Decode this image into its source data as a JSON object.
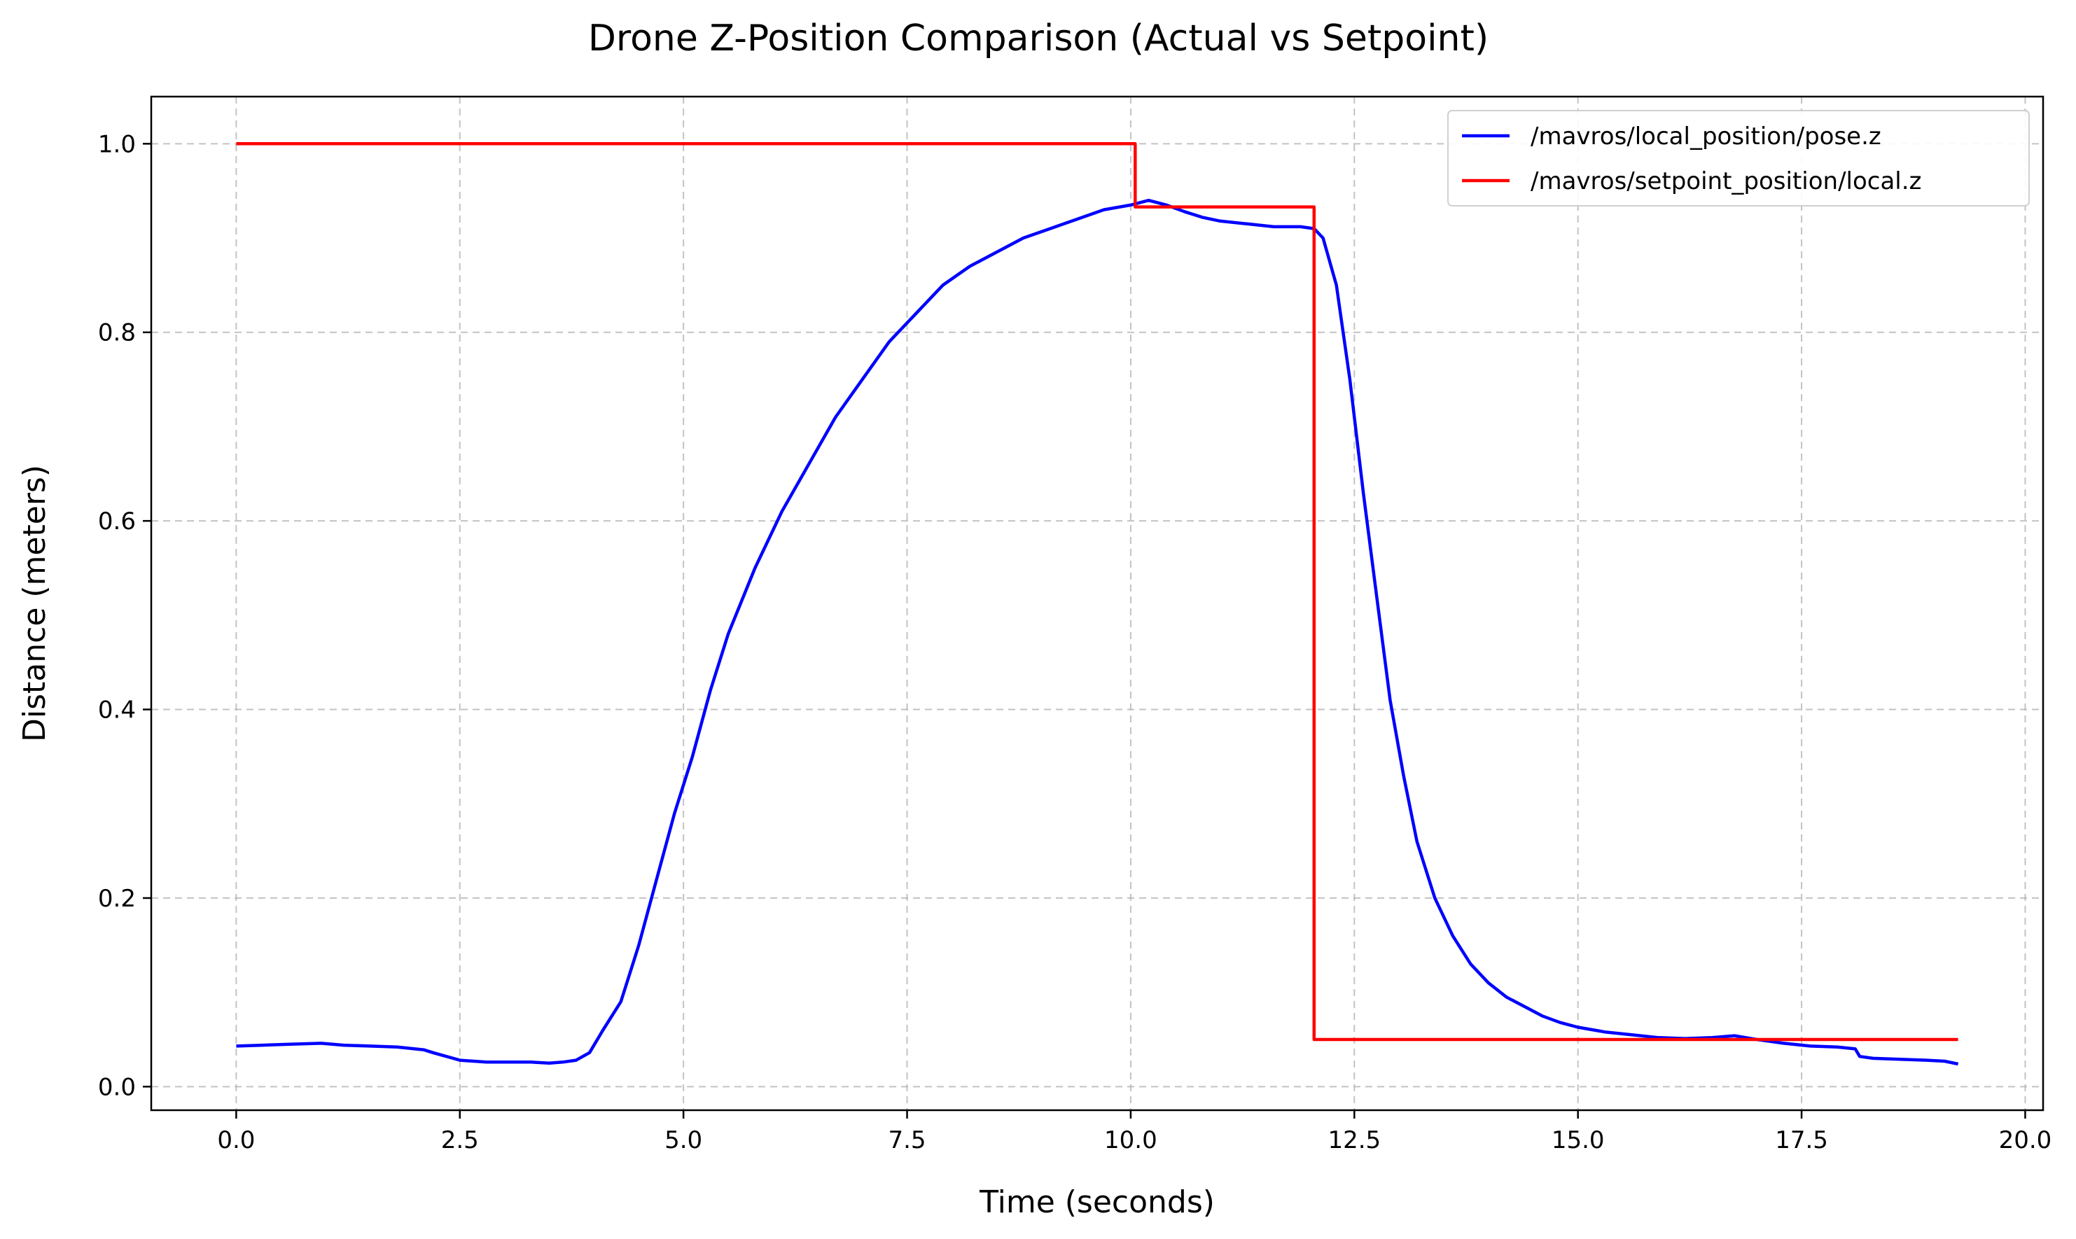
{
  "chart_data": {
    "type": "line",
    "title": "Drone Z-Position Comparison (Actual vs Setpoint)",
    "xlabel": "Time (seconds)",
    "ylabel": "Distance (meters)",
    "xlim": [
      -0.95,
      20.2
    ],
    "ylim": [
      -0.025,
      1.05
    ],
    "xticks": [
      0.0,
      2.5,
      5.0,
      7.5,
      10.0,
      12.5,
      15.0,
      17.5,
      20.0
    ],
    "xtick_labels": [
      "0.0",
      "2.5",
      "5.0",
      "7.5",
      "10.0",
      "12.5",
      "15.0",
      "17.5",
      "20.0"
    ],
    "yticks": [
      0.0,
      0.2,
      0.4,
      0.6,
      0.8,
      1.0
    ],
    "ytick_labels": [
      "0.0",
      "0.2",
      "0.4",
      "0.6",
      "0.8",
      "1.0"
    ],
    "grid": true,
    "legend_position": "top-right",
    "series": [
      {
        "name": "/mavros/local_position/pose.z",
        "color": "#0000ff",
        "x": [
          0.0,
          0.3,
          0.6,
          0.95,
          1.2,
          1.5,
          1.8,
          2.1,
          2.2,
          2.5,
          2.8,
          3.0,
          3.3,
          3.5,
          3.65,
          3.8,
          3.95,
          4.1,
          4.3,
          4.5,
          4.7,
          4.9,
          5.1,
          5.3,
          5.5,
          5.8,
          6.1,
          6.4,
          6.7,
          7.0,
          7.3,
          7.6,
          7.9,
          8.2,
          8.5,
          8.8,
          9.1,
          9.4,
          9.7,
          10.0,
          10.2,
          10.4,
          10.6,
          10.8,
          11.0,
          11.3,
          11.6,
          11.9,
          12.05,
          12.15,
          12.3,
          12.45,
          12.6,
          12.75,
          12.9,
          13.05,
          13.2,
          13.4,
          13.6,
          13.8,
          14.0,
          14.2,
          14.4,
          14.6,
          14.8,
          15.0,
          15.3,
          15.6,
          15.9,
          16.2,
          16.5,
          16.75,
          17.0,
          17.3,
          17.6,
          17.9,
          18.1,
          18.15,
          18.3,
          18.6,
          18.9,
          19.1,
          19.25
        ],
        "y": [
          0.043,
          0.044,
          0.045,
          0.046,
          0.044,
          0.043,
          0.042,
          0.039,
          0.036,
          0.028,
          0.026,
          0.026,
          0.026,
          0.025,
          0.026,
          0.028,
          0.036,
          0.06,
          0.09,
          0.15,
          0.22,
          0.29,
          0.35,
          0.42,
          0.48,
          0.55,
          0.61,
          0.66,
          0.71,
          0.75,
          0.79,
          0.82,
          0.85,
          0.87,
          0.885,
          0.9,
          0.91,
          0.92,
          0.93,
          0.935,
          0.94,
          0.935,
          0.928,
          0.922,
          0.918,
          0.915,
          0.912,
          0.912,
          0.91,
          0.9,
          0.85,
          0.75,
          0.63,
          0.52,
          0.41,
          0.33,
          0.26,
          0.2,
          0.16,
          0.13,
          0.11,
          0.095,
          0.085,
          0.075,
          0.068,
          0.063,
          0.058,
          0.055,
          0.052,
          0.051,
          0.052,
          0.054,
          0.05,
          0.046,
          0.043,
          0.042,
          0.04,
          0.032,
          0.03,
          0.029,
          0.028,
          0.027,
          0.024
        ]
      },
      {
        "name": "/mavros/setpoint_position/local.z",
        "color": "#ff0000",
        "x": [
          0.0,
          10.05,
          10.05,
          12.05,
          12.05,
          19.25
        ],
        "y": [
          1.0,
          1.0,
          0.933,
          0.933,
          0.05,
          0.05
        ]
      }
    ]
  }
}
